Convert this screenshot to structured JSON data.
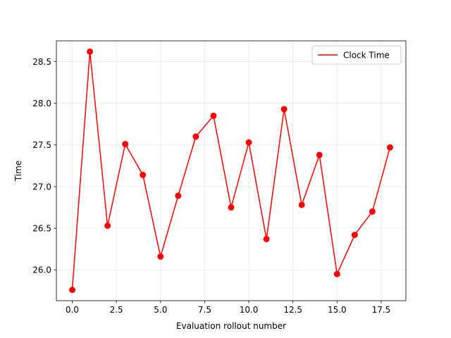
{
  "chart_data": {
    "type": "line",
    "title": "",
    "xlabel": "Evaluation rollout number",
    "ylabel": "Time",
    "xlim": [
      -0.9,
      18.9
    ],
    "ylim": [
      25.63,
      28.75
    ],
    "xticks": [
      0,
      2.5,
      5,
      7.5,
      10,
      12.5,
      15,
      17.5
    ],
    "xtick_labels": [
      "0.0",
      "2.5",
      "5.0",
      "7.5",
      "10.0",
      "12.5",
      "15.0",
      "17.5"
    ],
    "yticks": [
      26.0,
      26.5,
      27.0,
      27.5,
      28.0,
      28.5
    ],
    "ytick_labels": [
      "26.0",
      "26.5",
      "27.0",
      "27.5",
      "28.0",
      "28.5"
    ],
    "grid": true,
    "legend_position": "top-right",
    "series": [
      {
        "name": "Clock Time",
        "color": "#ff0000",
        "marker": "circle",
        "x": [
          0,
          1,
          2,
          3,
          4,
          5,
          6,
          7,
          8,
          9,
          10,
          11,
          12,
          13,
          14,
          15,
          16,
          17,
          18
        ],
        "values": [
          25.76,
          28.62,
          26.53,
          27.51,
          27.14,
          26.16,
          26.89,
          27.6,
          27.85,
          26.75,
          27.53,
          26.37,
          27.93,
          26.78,
          27.38,
          25.95,
          26.42,
          26.7,
          27.47
        ]
      }
    ]
  }
}
